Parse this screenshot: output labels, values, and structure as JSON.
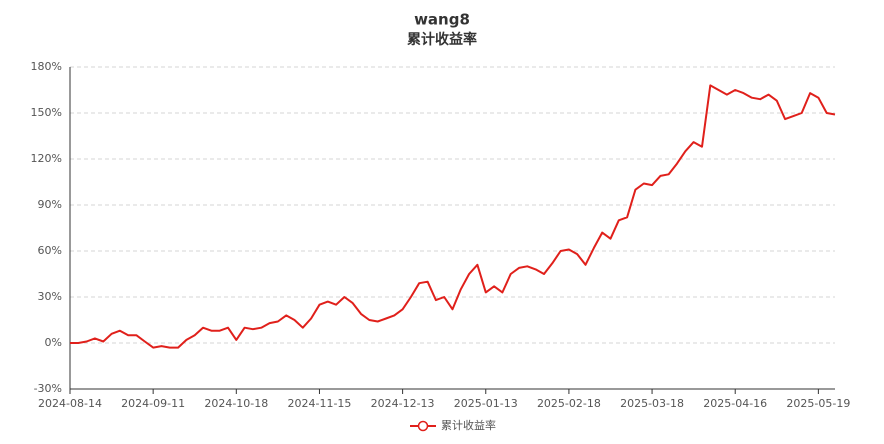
{
  "chart_data": {
    "type": "line",
    "title": "wang8",
    "subtitle": "累计收益率",
    "categories": [
      "2024-08-14",
      null,
      null,
      null,
      null,
      null,
      null,
      null,
      null,
      null,
      "2024-09-11",
      null,
      null,
      null,
      null,
      null,
      null,
      null,
      null,
      null,
      "2024-10-18",
      null,
      null,
      null,
      null,
      null,
      null,
      null,
      null,
      null,
      "2024-11-15",
      null,
      null,
      null,
      null,
      null,
      null,
      null,
      null,
      null,
      "2024-12-13",
      null,
      null,
      null,
      null,
      null,
      null,
      null,
      null,
      null,
      "2025-01-13",
      null,
      null,
      null,
      null,
      null,
      null,
      null,
      null,
      null,
      "2025-02-18",
      null,
      null,
      null,
      null,
      null,
      null,
      null,
      null,
      null,
      "2025-03-18",
      null,
      null,
      null,
      null,
      null,
      null,
      null,
      null,
      null,
      "2025-04-16",
      null,
      null,
      null,
      null,
      null,
      null,
      null,
      null,
      null,
      "2025-05-19",
      null,
      null
    ],
    "series": [
      {
        "name": "累计收益率",
        "color": "#e0201b",
        "values": [
          0,
          0,
          1,
          3,
          1,
          6,
          8,
          5,
          5,
          1,
          -3,
          -2,
          -3,
          -3,
          2,
          5,
          10,
          8,
          8,
          10,
          2,
          10,
          9,
          10,
          13,
          14,
          18,
          15,
          10,
          16,
          25,
          27,
          25,
          30,
          26,
          19,
          15,
          14,
          16,
          18,
          22,
          30,
          39,
          40,
          28,
          30,
          22,
          35,
          45,
          51,
          33,
          37,
          33,
          45,
          49,
          50,
          48,
          45,
          52,
          60,
          61,
          58,
          51,
          62,
          72,
          68,
          80,
          82,
          100,
          104,
          103,
          109,
          110,
          117,
          125,
          131,
          128,
          168,
          165,
          162,
          165,
          163,
          160,
          159,
          162,
          158,
          146,
          148,
          150,
          163,
          160,
          150,
          149
        ]
      }
    ],
    "ylim": [
      -30,
      180
    ],
    "yticks": [
      {
        "value": -30,
        "label": "-30%"
      },
      {
        "value": 0,
        "label": "0%"
      },
      {
        "value": 30,
        "label": "30%"
      },
      {
        "value": 60,
        "label": "60%"
      },
      {
        "value": 90,
        "label": "90%"
      },
      {
        "value": 120,
        "label": "120%"
      },
      {
        "value": 150,
        "label": "150%"
      },
      {
        "value": 180,
        "label": "180%"
      }
    ],
    "grid": true,
    "legend": "bottom"
  }
}
